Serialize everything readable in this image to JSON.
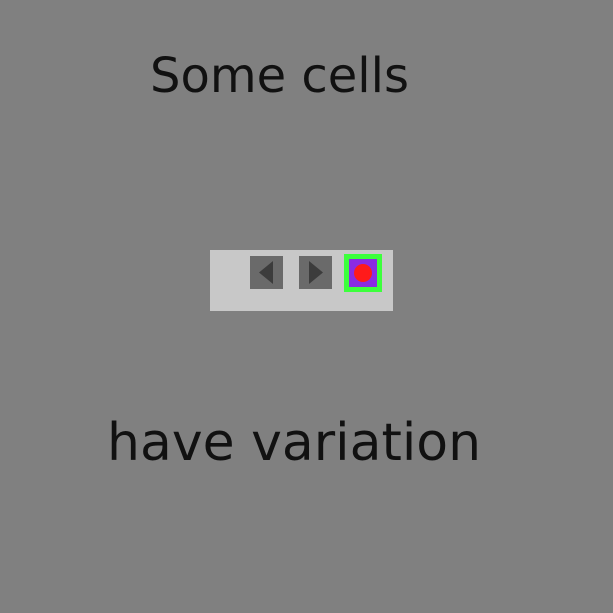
{
  "captions": {
    "top": "Some cells",
    "bottom": "have variation"
  },
  "toolbar": {
    "buttons": [
      {
        "icon": "triangle-left-icon",
        "label": "previous"
      },
      {
        "icon": "triangle-right-icon",
        "label": "next"
      },
      {
        "icon": "record-dot-icon",
        "label": "record"
      }
    ]
  },
  "colors": {
    "background": "#808080",
    "toolbar": "#c8c8c8",
    "nav_button": "#6a6a6a",
    "nav_arrow": "#3c3c3c",
    "record_border": "#3cff3c",
    "record_fill": "#8a2be2",
    "record_dot": "#ff1a1a",
    "text": "#111111"
  }
}
